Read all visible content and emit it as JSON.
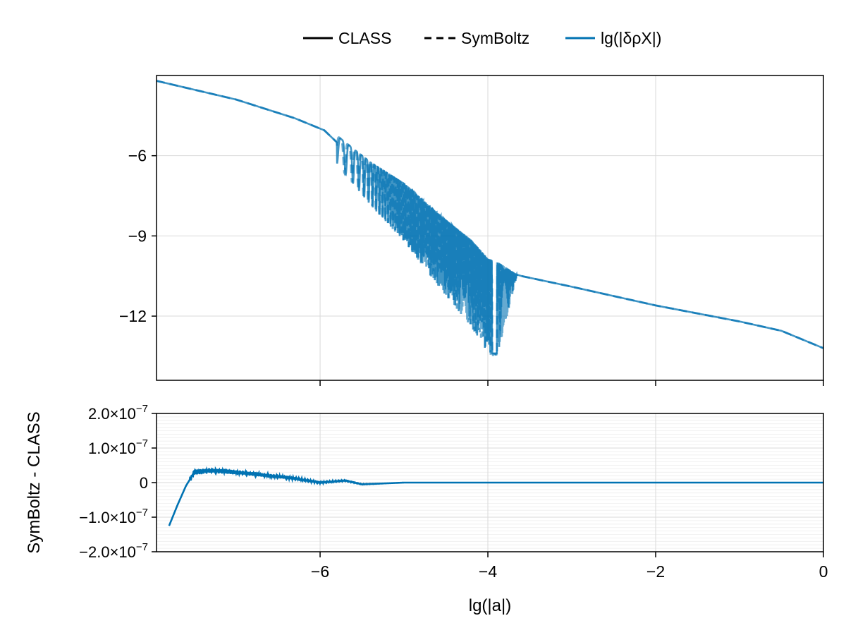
{
  "legend": {
    "placement": "top-center",
    "entries": [
      {
        "label": "CLASS",
        "style": "solid",
        "color": "#000000"
      },
      {
        "label": "SymBoltz",
        "style": "dashed",
        "color": "#000000"
      },
      {
        "label": "lg(|δρX|)",
        "style": "solid",
        "color": "#0072b2"
      }
    ]
  },
  "colors": {
    "series": "#0072b2",
    "grid": "#d9d9d9",
    "axis": "#000000"
  },
  "chart_data": [
    {
      "type": "line",
      "panel": "top",
      "xlim": [
        -7.95,
        0
      ],
      "ylim": [
        -14.4,
        -3.0
      ],
      "grid": true,
      "y_ticks": [
        {
          "value": -6,
          "label": "−6"
        },
        {
          "value": -9,
          "label": "−9"
        },
        {
          "value": -12,
          "label": "−12"
        }
      ],
      "x_ticks": [
        -6,
        -4,
        -2,
        0
      ],
      "series": [
        {
          "name": "lg(|δρX|)",
          "smooth_points": [
            [
              -7.95,
              -3.2
            ],
            [
              -7.0,
              -3.9
            ],
            [
              -6.3,
              -4.6
            ],
            [
              -5.95,
              -5.05
            ],
            [
              -5.8,
              -5.5
            ],
            [
              -5.4,
              -6.5
            ],
            [
              -5.0,
              -7.3
            ],
            [
              -4.6,
              -8.4
            ],
            [
              -4.2,
              -9.4
            ],
            [
              -4.0,
              -10.1
            ],
            [
              -3.6,
              -10.5
            ],
            [
              -3.0,
              -10.9
            ],
            [
              -2.0,
              -11.6
            ],
            [
              -1.0,
              -12.2
            ],
            [
              -0.5,
              -12.55
            ],
            [
              0.0,
              -13.2
            ]
          ],
          "oscillation": {
            "x_start": -5.8,
            "x_end": -3.9,
            "deepest_y": -13.8
          }
        }
      ]
    },
    {
      "type": "line",
      "panel": "bottom",
      "xlabel": "lg(|a|)",
      "ylabel": "SymBoltz - CLASS",
      "xlim": [
        -7.95,
        0
      ],
      "ylim": [
        -2e-07,
        2e-07
      ],
      "grid": true,
      "x_ticks": [
        {
          "value": -6,
          "label": "−6"
        },
        {
          "value": -4,
          "label": "−4"
        },
        {
          "value": -2,
          "label": "−2"
        },
        {
          "value": 0,
          "label": "0"
        }
      ],
      "y_ticks": [
        {
          "value": 2e-07,
          "mantissa": "2.0×10",
          "exponent": "−7"
        },
        {
          "value": 1e-07,
          "mantissa": "1.0×10",
          "exponent": "−7"
        },
        {
          "value": 0,
          "mantissa": "0",
          "exponent": ""
        },
        {
          "value": -1e-07,
          "mantissa": "−1.0×10",
          "exponent": "−7"
        },
        {
          "value": -2e-07,
          "mantissa": "−2.0×10",
          "exponent": "−7"
        }
      ],
      "series": [
        {
          "name": "SymBoltz - CLASS",
          "points": [
            [
              -7.8,
              -1.25e-07
            ],
            [
              -7.7,
              -6.5e-08
            ],
            [
              -7.6,
              -1e-08
            ],
            [
              -7.5,
              3e-08
            ],
            [
              -7.3,
              3.5e-08
            ],
            [
              -7.0,
              3e-08
            ],
            [
              -6.6,
              2e-08
            ],
            [
              -6.3,
              1.2e-08
            ],
            [
              -6.0,
              0.0
            ],
            [
              -5.7,
              6e-09
            ],
            [
              -5.5,
              -5e-09
            ],
            [
              -5.0,
              0.0
            ],
            [
              0.0,
              0.0
            ]
          ]
        }
      ]
    }
  ]
}
